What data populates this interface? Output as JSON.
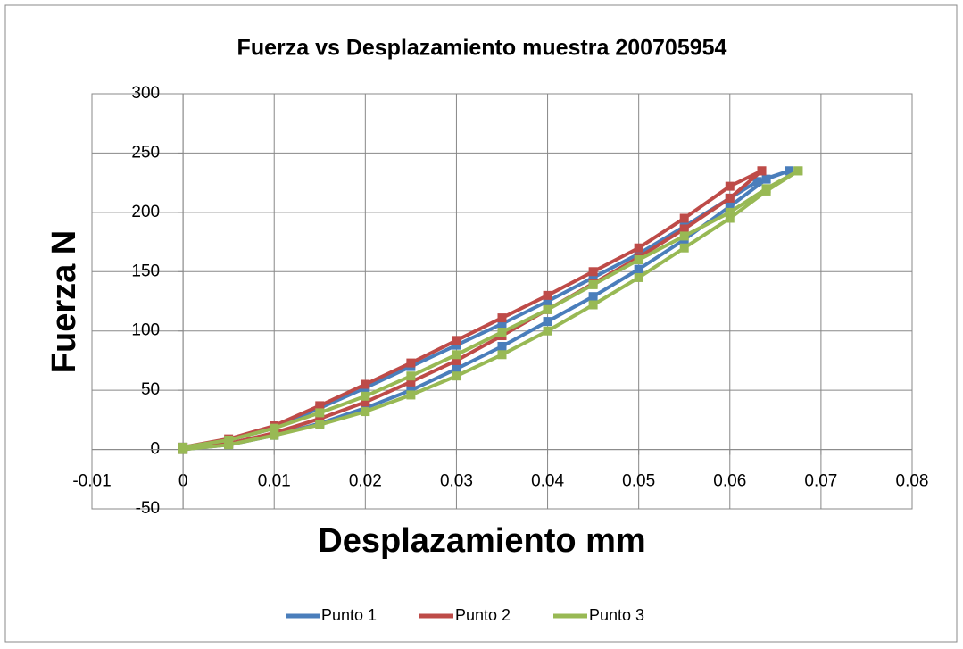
{
  "chart_data": {
    "type": "scatter",
    "title": "Fuerza vs Desplazamiento muestra 200705954",
    "x_label": "Desplazamiento mm",
    "y_label": "Fuerza N",
    "xlim": [
      -0.01,
      0.08
    ],
    "xticks": [
      -0.01,
      0,
      0.01,
      0.02,
      0.03,
      0.04,
      0.05,
      0.06,
      0.07,
      0.08
    ],
    "ylim": [
      -50,
      300
    ],
    "yticks": [
      -50,
      0,
      50,
      100,
      150,
      200,
      250,
      300
    ],
    "grid": true,
    "legend": "bottom",
    "series": [
      {
        "name": "Punto 1",
        "color": "#4a7ebb",
        "x": [
          0,
          0.005,
          0.01,
          0.015,
          0.02,
          0.025,
          0.03,
          0.035,
          0.04,
          0.045,
          0.05,
          0.055,
          0.06,
          0.064,
          0.0665,
          0.0665,
          0.063,
          0.06,
          0.055,
          0.05,
          0.045,
          0.04,
          0.035,
          0.03,
          0.025,
          0.02,
          0.015,
          0.01,
          0.005,
          0
        ],
        "values": [
          0,
          4,
          12,
          22,
          35,
          50,
          68,
          87,
          108,
          129,
          152,
          177,
          205,
          228,
          235,
          235,
          226,
          212,
          188,
          165,
          145,
          125,
          106,
          88,
          70,
          52,
          35,
          18,
          8,
          2
        ]
      },
      {
        "name": "Punto 2",
        "color": "#be4b48",
        "x": [
          0,
          0.005,
          0.01,
          0.015,
          0.02,
          0.025,
          0.03,
          0.035,
          0.04,
          0.045,
          0.05,
          0.055,
          0.06,
          0.0635,
          0.0635,
          0.06,
          0.055,
          0.05,
          0.045,
          0.04,
          0.035,
          0.03,
          0.025,
          0.02,
          0.015,
          0.01,
          0.005,
          0
        ],
        "values": [
          0,
          5,
          14,
          26,
          40,
          57,
          75,
          96,
          118,
          140,
          162,
          186,
          212,
          235,
          235,
          222,
          195,
          170,
          150,
          130,
          111,
          92,
          73,
          55,
          37,
          20,
          9,
          2
        ]
      },
      {
        "name": "Punto 3",
        "color": "#98b954",
        "x": [
          0,
          0.005,
          0.01,
          0.015,
          0.02,
          0.025,
          0.03,
          0.035,
          0.04,
          0.045,
          0.05,
          0.055,
          0.06,
          0.064,
          0.0675,
          0.0675,
          0.064,
          0.06,
          0.055,
          0.05,
          0.045,
          0.04,
          0.035,
          0.03,
          0.025,
          0.02,
          0.015,
          0.01,
          0.005,
          0
        ],
        "values": [
          0,
          4,
          12,
          21,
          32,
          46,
          62,
          80,
          100,
          122,
          145,
          170,
          195,
          218,
          235,
          235,
          220,
          200,
          180,
          160,
          139,
          118,
          99,
          80,
          62,
          45,
          31,
          18,
          8,
          2
        ]
      }
    ]
  }
}
